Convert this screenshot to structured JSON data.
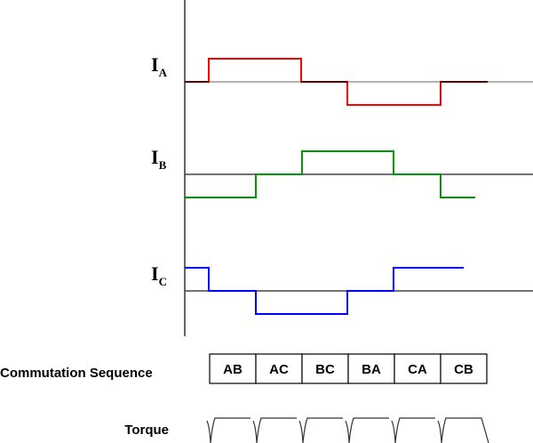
{
  "signals": [
    {
      "label": "I",
      "sub": "A",
      "color": "#ff0000",
      "levels": [
        0,
        1,
        1,
        0,
        -1,
        -1,
        0
      ]
    },
    {
      "label": "I",
      "sub": "B",
      "color": "#009900",
      "levels": [
        -1,
        -1,
        0,
        1,
        1,
        0,
        -1
      ]
    },
    {
      "label": "I",
      "sub": "C",
      "color": "#0000ff",
      "levels": [
        1,
        0,
        -1,
        -1,
        0,
        1,
        1
      ]
    }
  ],
  "sequence_label": "Commutation Sequence",
  "sequence": [
    "AB",
    "AC",
    "BC",
    "BA",
    "CA",
    "CB"
  ],
  "torque_label": "Torque"
}
